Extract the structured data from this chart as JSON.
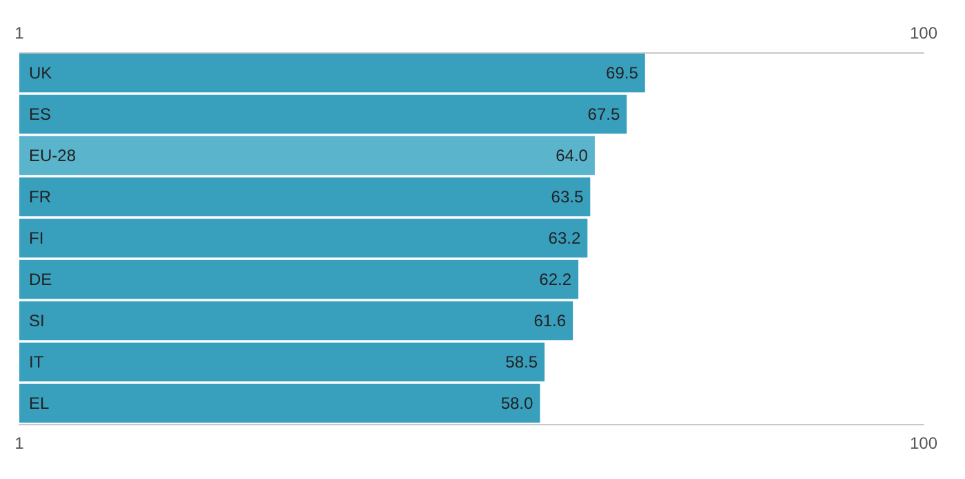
{
  "chart_data": {
    "type": "bar",
    "orientation": "horizontal",
    "categories": [
      "UK",
      "ES",
      "EU-28",
      "FR",
      "FI",
      "DE",
      "SI",
      "IT",
      "EL"
    ],
    "values": [
      69.5,
      67.5,
      64.0,
      63.5,
      63.2,
      62.2,
      61.6,
      58.5,
      58.0
    ],
    "colors": [
      "#389fbd",
      "#389fbd",
      "#5ab4cc",
      "#389fbd",
      "#389fbd",
      "#389fbd",
      "#389fbd",
      "#389fbd",
      "#389fbd"
    ],
    "value_labels": [
      "69.5",
      "67.5",
      "64.0",
      "63.5",
      "63.2",
      "62.2",
      "61.6",
      "58.5",
      "58.0"
    ],
    "xlim": [
      1,
      100
    ],
    "xticks": [
      1,
      100
    ],
    "x2lim": [
      1,
      100
    ],
    "x2ticks": [
      1,
      100
    ],
    "grid": false
  }
}
